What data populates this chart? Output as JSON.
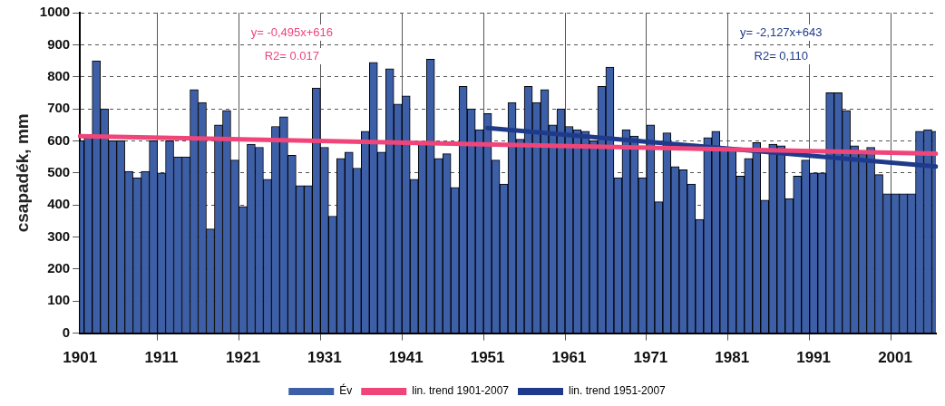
{
  "chart_data": {
    "type": "bar",
    "ylabel": "csapadék, mm",
    "categories": [
      "1901",
      null,
      null,
      null,
      null,
      null,
      null,
      null,
      null,
      null,
      "1911",
      null,
      null,
      null,
      null,
      null,
      null,
      null,
      null,
      null,
      "1921",
      null,
      null,
      null,
      null,
      null,
      null,
      null,
      null,
      null,
      "1931",
      null,
      null,
      null,
      null,
      null,
      null,
      null,
      null,
      null,
      "1941",
      null,
      null,
      null,
      null,
      null,
      null,
      null,
      null,
      null,
      "1951",
      null,
      null,
      null,
      null,
      null,
      null,
      null,
      null,
      null,
      "1961",
      null,
      null,
      null,
      null,
      null,
      null,
      null,
      null,
      null,
      "1971",
      null,
      null,
      null,
      null,
      null,
      null,
      null,
      null,
      null,
      "1981",
      null,
      null,
      null,
      null,
      null,
      null,
      null,
      null,
      null,
      "1991",
      null,
      null,
      null,
      null,
      null,
      null,
      null,
      null,
      null,
      "2001",
      null,
      null,
      null,
      null,
      null
    ],
    "series": [
      {
        "name": "Év",
        "color": "#3d5fa8",
        "values": [
          600,
          610,
          850,
          700,
          600,
          600,
          505,
          485,
          505,
          600,
          500,
          600,
          550,
          550,
          760,
          720,
          325,
          650,
          695,
          540,
          395,
          590,
          580,
          480,
          645,
          675,
          555,
          460,
          460,
          765,
          580,
          365,
          545,
          565,
          515,
          630,
          845,
          565,
          825,
          715,
          740,
          480,
          590,
          855,
          545,
          560,
          455,
          770,
          700,
          635,
          685,
          540,
          465,
          720,
          605,
          770,
          720,
          760,
          650,
          700,
          645,
          635,
          630,
          600,
          770,
          830,
          485,
          635,
          615,
          485,
          650,
          410,
          625,
          520,
          510,
          465,
          355,
          610,
          630,
          570,
          570,
          490,
          545,
          595,
          415,
          590,
          585,
          420,
          490,
          540,
          500,
          500,
          750,
          750,
          695,
          585,
          560,
          580,
          495,
          435,
          435,
          435,
          435,
          630,
          635,
          630
        ]
      },
      {
        "name": "lin. trend 1901-2007",
        "type": "line",
        "color": "#f0457a",
        "values": [
          615,
          null,
          null,
          null,
          null,
          null,
          null,
          null,
          null,
          null,
          null,
          null,
          null,
          null,
          null,
          null,
          null,
          null,
          null,
          null,
          null,
          null,
          null,
          null,
          null,
          null,
          null,
          null,
          null,
          null,
          null,
          null,
          null,
          null,
          null,
          null,
          null,
          null,
          null,
          null,
          null,
          null,
          null,
          null,
          null,
          null,
          null,
          null,
          null,
          null,
          null,
          null,
          null,
          null,
          null,
          null,
          null,
          null,
          null,
          null,
          null,
          null,
          null,
          null,
          null,
          null,
          null,
          null,
          null,
          null,
          null,
          null,
          null,
          null,
          null,
          null,
          null,
          null,
          null,
          null,
          null,
          null,
          null,
          null,
          null,
          null,
          null,
          null,
          null,
          null,
          null,
          null,
          null,
          null,
          null,
          null,
          null,
          null,
          null,
          null,
          null,
          null,
          null,
          null,
          null,
          560
        ]
      },
      {
        "name": "lin. trend 1951-2007",
        "type": "line",
        "color": "#1f3a8a",
        "values": [
          null,
          null,
          null,
          null,
          null,
          null,
          null,
          null,
          null,
          null,
          null,
          null,
          null,
          null,
          null,
          null,
          null,
          null,
          null,
          null,
          null,
          null,
          null,
          null,
          null,
          null,
          null,
          null,
          null,
          null,
          null,
          null,
          null,
          null,
          null,
          null,
          null,
          null,
          null,
          null,
          null,
          null,
          null,
          null,
          null,
          null,
          null,
          null,
          null,
          null,
          640,
          null,
          null,
          null,
          null,
          null,
          null,
          null,
          null,
          null,
          null,
          null,
          null,
          null,
          null,
          null,
          null,
          null,
          null,
          null,
          null,
          null,
          null,
          null,
          null,
          null,
          null,
          null,
          null,
          null,
          null,
          null,
          null,
          null,
          null,
          null,
          null,
          null,
          null,
          null,
          null,
          null,
          null,
          null,
          null,
          null,
          null,
          null,
          null,
          null,
          null,
          null,
          null,
          null,
          null,
          520
        ]
      }
    ],
    "annotations": [
      "y= -0,495x+616",
      "R2= 0.017",
      "y= -2,127x+643",
      "R2= 0,110"
    ],
    "ylim": [
      0,
      1000
    ],
    "yticks": [
      0,
      100,
      200,
      300,
      400,
      500,
      600,
      700,
      800,
      900,
      1000
    ],
    "grid": true,
    "legend": "bottom"
  }
}
